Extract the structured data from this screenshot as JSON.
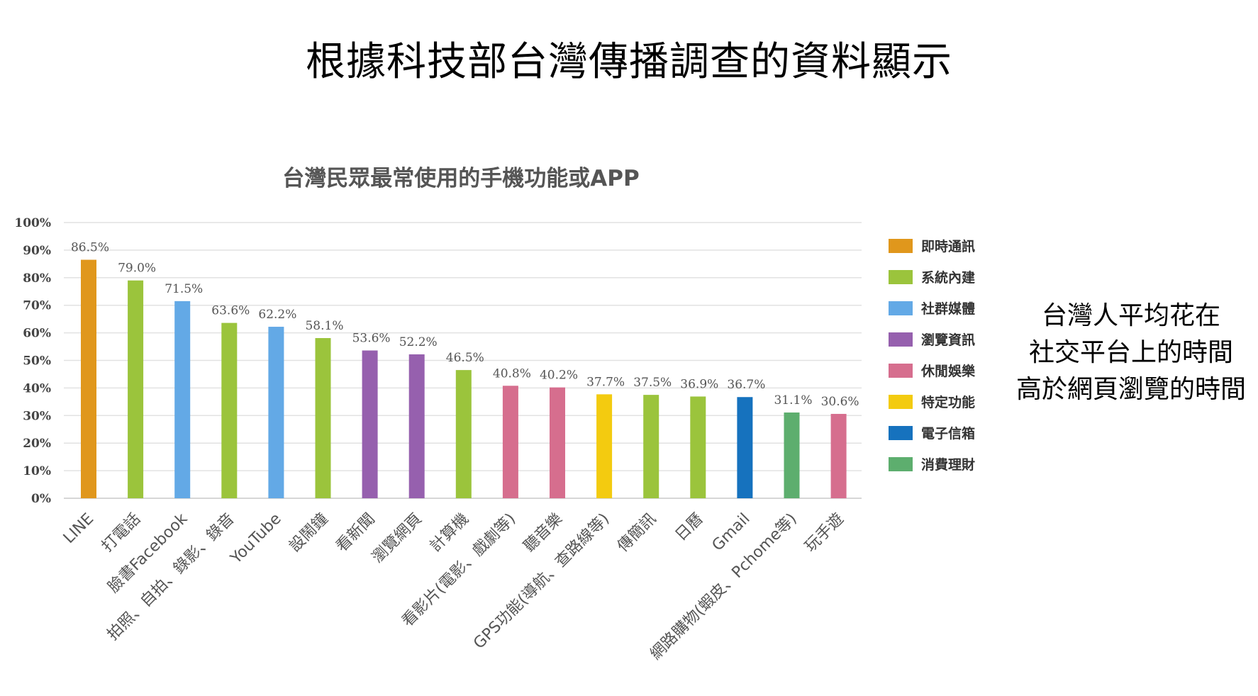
{
  "page": {
    "title": "根據科技部台灣傳播調查的資料顯示",
    "side_note": [
      "台灣人平均花在",
      "社交平台上的時間",
      "高於網頁瀏覽的時間"
    ]
  },
  "chart_data": {
    "type": "bar",
    "title": "台灣民眾最常使用的手機功能或APP",
    "xlabel": "",
    "ylabel": "",
    "ylim": [
      0,
      100
    ],
    "y_ticks": [
      "0%",
      "10%",
      "20%",
      "30%",
      "40%",
      "50%",
      "60%",
      "70%",
      "80%",
      "90%",
      "100%"
    ],
    "grid": true,
    "legend_position": "right",
    "categories": [
      "LINE",
      "打電話",
      "臉書Facebook",
      "拍照、自拍、錄影、錄音",
      "YouTube",
      "設鬧鐘",
      "看新聞",
      "瀏覽網頁",
      "計算機",
      "看影片(電影、戲劇等)",
      "聽音樂",
      "GPS功能(導航、查路線等)",
      "傳簡訊",
      "日曆",
      "Gmail",
      "網路購物(蝦皮、Pchome等)",
      "玩手遊"
    ],
    "values": [
      86.5,
      79.0,
      71.5,
      63.6,
      62.2,
      58.1,
      53.6,
      52.2,
      46.5,
      40.8,
      40.2,
      37.7,
      37.5,
      36.9,
      36.7,
      31.1,
      30.6
    ],
    "value_labels": [
      "86.5%",
      "79.0%",
      "71.5%",
      "63.6%",
      "62.2%",
      "58.1%",
      "53.6%",
      "52.2%",
      "46.5%",
      "40.8%",
      "40.2%",
      "37.7%",
      "37.5%",
      "36.9%",
      "36.7%",
      "31.1%",
      "30.6%"
    ],
    "bar_groups": [
      0,
      1,
      2,
      1,
      2,
      1,
      3,
      3,
      1,
      4,
      4,
      5,
      1,
      1,
      6,
      7,
      4
    ],
    "legend": [
      {
        "label": "即時通訊",
        "color": "#E0971C"
      },
      {
        "label": "系統內建",
        "color": "#9BC43C"
      },
      {
        "label": "社群媒體",
        "color": "#63A9E6"
      },
      {
        "label": "瀏覽資訊",
        "color": "#9660AE"
      },
      {
        "label": "休閒娛樂",
        "color": "#D66E8E"
      },
      {
        "label": "特定功能",
        "color": "#F3CB10"
      },
      {
        "label": "電子信箱",
        "color": "#1672BE"
      },
      {
        "label": "消費理財",
        "color": "#5DAE6E"
      }
    ]
  }
}
